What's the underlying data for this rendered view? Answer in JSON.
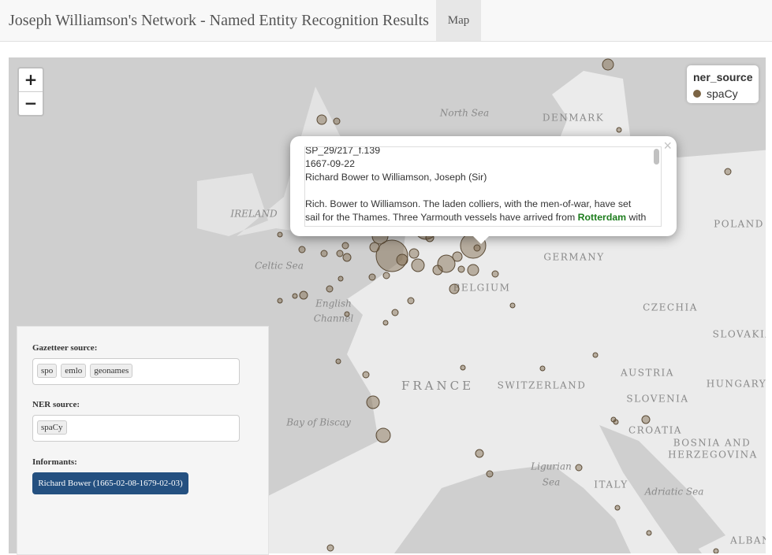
{
  "header": {
    "title": "Joseph Williamson's Network - Named Entity Recognition Results",
    "tab": "Map"
  },
  "map": {
    "zoom": {
      "in": "+",
      "out": "−"
    },
    "labels": [
      "North Sea",
      "DENMARK",
      "IRELAND",
      "Celtic Sea",
      "English",
      "Channel",
      "GERMANY",
      "POLAND",
      "BELGIUM",
      "CZECHIA",
      "SLOVAKIA",
      "AUSTRIA",
      "HUNGARY",
      "FRANCE",
      "SWITZERLAND",
      "SLOVENIA",
      "CROATIA",
      "BOSNIA AND",
      "HERZEGOVINA",
      "Bay of Biscay",
      "Ligurian",
      "Sea",
      "ITALY",
      "Adriatic Sea",
      "ALBAN"
    ],
    "legend": {
      "title": "ner_source",
      "items": [
        "spaCy"
      ]
    },
    "popup": {
      "close": "×",
      "id": "SP_29/217_f.139",
      "date": "1667-09-22",
      "title": "Richard Bower to Williamson, Joseph (Sir)",
      "text_before": "Rich. Bower to Williamson. The laden colliers, with the men-of-war, have set sail for the Thames. Three Yarmouth vessels have arrived from ",
      "entity": "Rotterdam",
      "text_after": " with"
    }
  },
  "panel": {
    "gazetteer_label": "Gazetteer source:",
    "gazetteer_tags": [
      "spo",
      "emlo",
      "geonames"
    ],
    "ner_label": "NER source:",
    "ner_tags": [
      "spaCy"
    ],
    "informants_label": "Informants:",
    "informant": "Richard Bower (1665-02-08-1679-02-03)"
  }
}
